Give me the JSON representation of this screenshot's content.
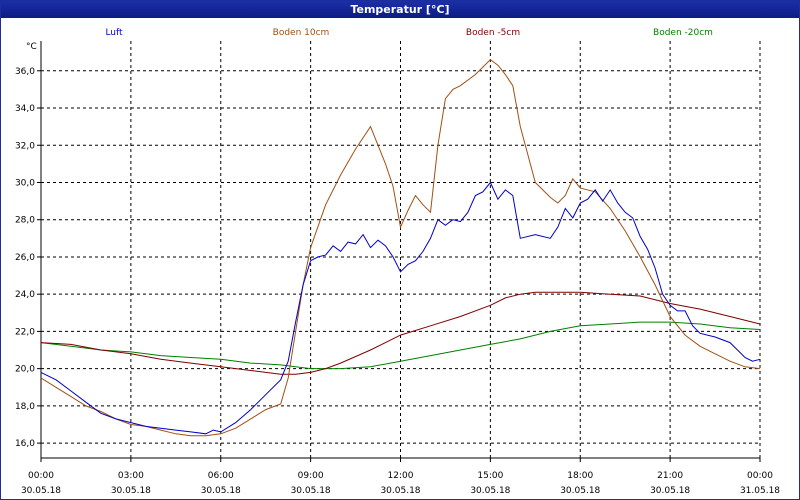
{
  "window": {
    "title": "Temperatur [°C]"
  },
  "chart_data": {
    "type": "line",
    "title": "Temperatur [°C]",
    "ylabel": "°C",
    "xlabel": "",
    "ylim": [
      15.2,
      37.6
    ],
    "xlim": [
      0,
      24
    ],
    "grid": true,
    "legend_position": "top",
    "y_ticks": [
      "16,0",
      "18,0",
      "20,0",
      "22,0",
      "24,0",
      "26,0",
      "28,0",
      "30,0",
      "32,0",
      "34,0",
      "36,0"
    ],
    "x_ticks": [
      {
        "time": "00:00",
        "date": "30.05.18"
      },
      {
        "time": "03:00",
        "date": "30.05.18"
      },
      {
        "time": "06:00",
        "date": "30.05.18"
      },
      {
        "time": "09:00",
        "date": "30.05.18"
      },
      {
        "time": "12:00",
        "date": "30.05.18"
      },
      {
        "time": "15:00",
        "date": "30.05.18"
      },
      {
        "time": "18:00",
        "date": "30.05.18"
      },
      {
        "time": "21:00",
        "date": "30.05.18"
      },
      {
        "time": "00:00",
        "date": "31.05.18"
      }
    ],
    "series": [
      {
        "name": "Luft",
        "color": "#0000c8",
        "x": [
          "00:00",
          "00:30",
          "01:00",
          "01:30",
          "02:00",
          "02:30",
          "03:00",
          "03:30",
          "04:00",
          "04:30",
          "05:00",
          "05:30",
          "05:45",
          "06:00",
          "06:30",
          "07:00",
          "07:30",
          "08:00",
          "08:15",
          "08:30",
          "08:45",
          "09:00",
          "09:15",
          "09:30",
          "09:45",
          "10:00",
          "10:15",
          "10:30",
          "10:45",
          "11:00",
          "11:15",
          "11:30",
          "11:45",
          "12:00",
          "12:15",
          "12:30",
          "12:45",
          "13:00",
          "13:15",
          "13:30",
          "13:45",
          "14:00",
          "14:15",
          "14:30",
          "14:45",
          "15:00",
          "15:15",
          "15:30",
          "15:45",
          "16:00",
          "16:30",
          "17:00",
          "17:15",
          "17:30",
          "17:45",
          "18:00",
          "18:15",
          "18:30",
          "18:45",
          "19:00",
          "19:15",
          "19:30",
          "19:45",
          "20:00",
          "20:15",
          "20:30",
          "20:45",
          "21:00",
          "21:15",
          "21:30",
          "21:45",
          "22:00",
          "22:30",
          "23:00",
          "23:15",
          "23:30",
          "23:45",
          "24:00"
        ],
        "values": [
          19.8,
          19.4,
          18.8,
          18.2,
          17.6,
          17.3,
          17.1,
          16.9,
          16.8,
          16.7,
          16.6,
          16.5,
          16.7,
          16.6,
          17.1,
          17.8,
          18.6,
          19.4,
          20.4,
          22.5,
          24.5,
          25.8,
          26.0,
          26.1,
          26.6,
          26.3,
          26.8,
          26.7,
          27.2,
          26.5,
          26.9,
          26.6,
          26.0,
          25.2,
          25.6,
          25.8,
          26.3,
          27.0,
          28.0,
          27.7,
          28.0,
          27.9,
          28.4,
          29.3,
          29.5,
          30.0,
          29.1,
          29.6,
          29.3,
          27.0,
          27.2,
          27.0,
          27.6,
          28.6,
          28.1,
          28.9,
          29.1,
          29.6,
          29.0,
          29.6,
          28.9,
          28.4,
          28.1,
          27.1,
          26.4,
          25.4,
          24.0,
          23.4,
          23.1,
          23.1,
          22.3,
          21.9,
          21.7,
          21.4,
          21.0,
          20.6,
          20.4,
          20.5
        ]
      },
      {
        "name": "Boden 10cm",
        "color": "#a05014",
        "x": [
          "00:00",
          "00:30",
          "01:00",
          "01:30",
          "02:00",
          "02:30",
          "03:00",
          "03:30",
          "04:00",
          "04:30",
          "05:00",
          "05:30",
          "06:00",
          "06:30",
          "07:00",
          "07:30",
          "08:00",
          "08:15",
          "08:30",
          "08:45",
          "09:00",
          "09:30",
          "10:00",
          "10:30",
          "11:00",
          "11:30",
          "11:45",
          "12:00",
          "12:15",
          "12:30",
          "12:45",
          "13:00",
          "13:15",
          "13:30",
          "13:45",
          "14:00",
          "14:30",
          "15:00",
          "15:15",
          "15:30",
          "15:45",
          "16:00",
          "16:30",
          "17:00",
          "17:15",
          "17:30",
          "17:45",
          "18:00",
          "18:30",
          "19:00",
          "19:30",
          "20:00",
          "20:30",
          "21:00",
          "21:30",
          "22:00",
          "22:30",
          "23:00",
          "23:30",
          "24:00"
        ],
        "values": [
          19.5,
          19.0,
          18.5,
          18.0,
          17.7,
          17.3,
          17.0,
          16.9,
          16.7,
          16.5,
          16.4,
          16.4,
          16.5,
          16.8,
          17.3,
          17.8,
          18.1,
          19.5,
          22.0,
          24.5,
          26.5,
          28.8,
          30.4,
          31.8,
          33.0,
          31.0,
          29.8,
          27.6,
          28.5,
          29.3,
          28.8,
          28.4,
          32.0,
          34.5,
          35.0,
          35.2,
          35.8,
          36.6,
          36.3,
          35.8,
          35.2,
          33.0,
          30.0,
          29.2,
          28.9,
          29.3,
          30.2,
          29.7,
          29.5,
          28.6,
          27.4,
          26.0,
          24.5,
          22.8,
          21.8,
          21.2,
          20.8,
          20.4,
          20.1,
          20.0
        ]
      },
      {
        "name": "Boden -5cm",
        "color": "#800000",
        "x": [
          "00:00",
          "01:00",
          "02:00",
          "03:00",
          "04:00",
          "05:00",
          "06:00",
          "07:00",
          "08:00",
          "08:30",
          "09:00",
          "09:30",
          "10:00",
          "11:00",
          "12:00",
          "13:00",
          "14:00",
          "15:00",
          "15:30",
          "16:00",
          "16:30",
          "17:00",
          "18:00",
          "19:00",
          "20:00",
          "21:00",
          "22:00",
          "23:00",
          "24:00"
        ],
        "values": [
          21.4,
          21.3,
          21.0,
          20.8,
          20.5,
          20.3,
          20.1,
          19.9,
          19.7,
          19.7,
          19.8,
          20.0,
          20.3,
          21.0,
          21.8,
          22.3,
          22.8,
          23.4,
          23.8,
          24.0,
          24.1,
          24.1,
          24.1,
          24.0,
          23.9,
          23.5,
          23.2,
          22.8,
          22.4
        ]
      },
      {
        "name": "Boden -20cm",
        "color": "#008000",
        "x": [
          "00:00",
          "01:00",
          "02:00",
          "03:00",
          "04:00",
          "05:00",
          "06:00",
          "07:00",
          "08:00",
          "09:00",
          "10:00",
          "11:00",
          "12:00",
          "13:00",
          "14:00",
          "15:00",
          "16:00",
          "17:00",
          "18:00",
          "19:00",
          "20:00",
          "21:00",
          "22:00",
          "23:00",
          "24:00"
        ],
        "values": [
          21.4,
          21.2,
          21.0,
          20.9,
          20.7,
          20.6,
          20.5,
          20.3,
          20.2,
          20.0,
          20.0,
          20.1,
          20.4,
          20.7,
          21.0,
          21.3,
          21.6,
          22.0,
          22.3,
          22.4,
          22.5,
          22.5,
          22.4,
          22.2,
          22.1
        ]
      }
    ]
  }
}
